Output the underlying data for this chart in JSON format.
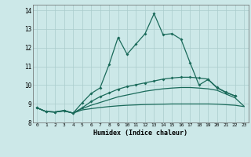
{
  "xlabel": "Humidex (Indice chaleur)",
  "ylabel": "",
  "xlim": [
    -0.5,
    23.5
  ],
  "ylim": [
    8.0,
    14.3
  ],
  "xticks": [
    0,
    1,
    2,
    3,
    4,
    5,
    6,
    7,
    8,
    9,
    10,
    11,
    12,
    13,
    14,
    15,
    16,
    17,
    18,
    19,
    20,
    21,
    22,
    23
  ],
  "yticks": [
    8,
    9,
    10,
    11,
    12,
    13,
    14
  ],
  "bg_color": "#cce8e8",
  "grid_color": "#aacccc",
  "line_color": "#1a6a5a",
  "line1_y": [
    8.78,
    8.58,
    8.56,
    8.65,
    8.5,
    9.05,
    9.55,
    9.85,
    11.1,
    12.55,
    11.65,
    12.2,
    12.75,
    13.82,
    12.7,
    12.75,
    12.45,
    11.2,
    10.0,
    10.3,
    9.85,
    9.6,
    9.42,
    null
  ],
  "line2_y": [
    8.78,
    8.58,
    8.56,
    8.62,
    8.5,
    8.78,
    9.12,
    9.38,
    9.58,
    9.78,
    9.92,
    10.02,
    10.12,
    10.22,
    10.32,
    10.38,
    10.42,
    10.42,
    10.38,
    10.32,
    9.87,
    9.62,
    9.42,
    null
  ],
  "line3_y": [
    8.78,
    8.58,
    8.56,
    8.62,
    8.5,
    8.74,
    8.92,
    9.07,
    9.22,
    9.37,
    9.47,
    9.57,
    9.67,
    9.74,
    9.8,
    9.84,
    9.87,
    9.87,
    9.84,
    9.8,
    9.72,
    9.52,
    9.32,
    8.87
  ],
  "line4_y": [
    8.78,
    8.58,
    8.56,
    8.62,
    8.5,
    8.67,
    8.74,
    8.8,
    8.85,
    8.89,
    8.92,
    8.94,
    8.96,
    8.97,
    8.98,
    8.99,
    8.99,
    8.99,
    8.99,
    8.99,
    8.98,
    8.95,
    8.92,
    8.85
  ]
}
